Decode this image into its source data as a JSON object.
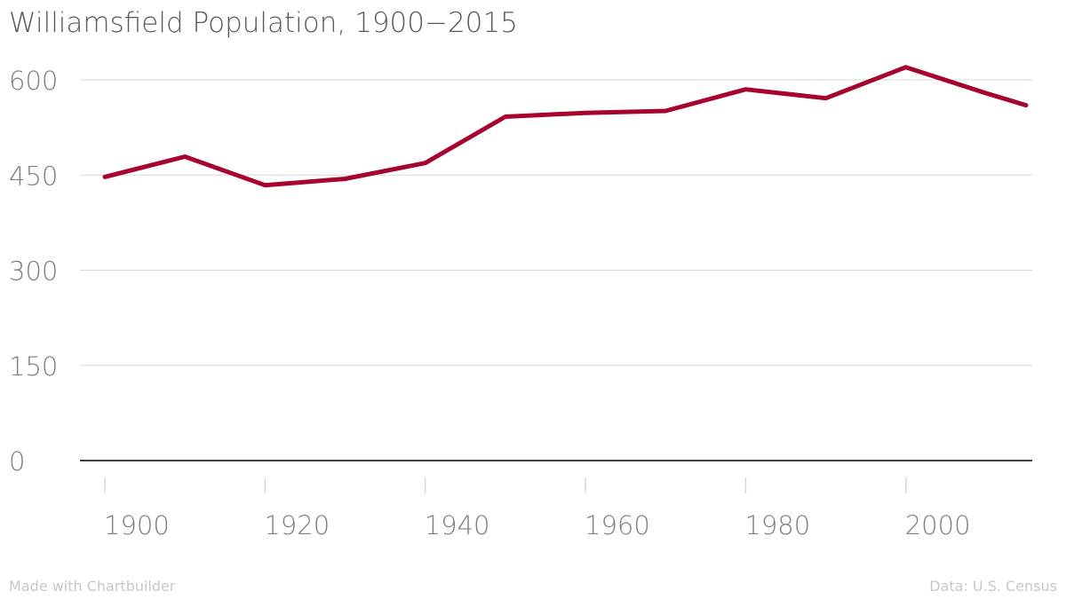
{
  "chart_data": {
    "type": "line",
    "title": "Williamsfield Population, 1900−2015",
    "xlabel": "",
    "ylabel": "",
    "xlim": [
      1896,
      2016
    ],
    "ylim": [
      0,
      600
    ],
    "y_ticks": [
      "0",
      "150",
      "300",
      "450",
      "600"
    ],
    "x_ticks": [
      "1900",
      "1920",
      "1940",
      "1960",
      "1980",
      "2000"
    ],
    "grid": true,
    "legend": "none",
    "series": [
      {
        "x": [
          1900,
          1910,
          1920,
          1930,
          1940,
          1950,
          1960,
          1970,
          1980,
          1990,
          2000,
          2010,
          2015
        ],
        "values": [
          447,
          479,
          434,
          444,
          469,
          542,
          548,
          551,
          585,
          571,
          620,
          579,
          560
        ],
        "color": "#a6032e"
      }
    ]
  },
  "footer": {
    "credit": "Made with Chartbuilder",
    "source": "Data: U.S. Census"
  },
  "colors": {
    "line": "#a6032e",
    "grid": "#d9d9d9",
    "axis": "#000000",
    "tick_text": "#7f7f7f",
    "title": "#595959",
    "footer": "#c8c8c8"
  }
}
